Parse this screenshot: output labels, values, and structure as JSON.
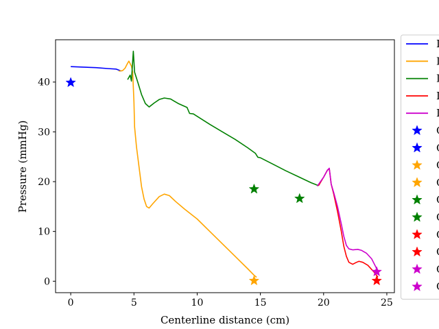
{
  "chart_data": {
    "type": "line",
    "xlabel": "Centerline distance (cm)",
    "ylabel": "Pressure (mmHg)",
    "xlim": [
      -1.2,
      25.6
    ],
    "ylim": [
      -2.3,
      48.5
    ],
    "xticks": [
      0,
      5,
      10,
      15,
      20,
      25
    ],
    "yticks": [
      0,
      10,
      20,
      30,
      40
    ],
    "grid": false,
    "legend_placement": "outside-right",
    "legend_labels": [
      "I",
      "I",
      "I",
      "I",
      "I",
      "C",
      "C",
      "C",
      "C",
      "C",
      "C",
      "C",
      "C",
      "C",
      "C"
    ],
    "series": [
      {
        "color": "#0000ff",
        "points": [
          [
            0,
            43.1
          ],
          [
            1,
            43.0
          ],
          [
            2,
            42.9
          ],
          [
            3,
            42.7
          ],
          [
            3.6,
            42.6
          ],
          [
            4.0,
            42.2
          ]
        ]
      },
      {
        "color": "#ffa500",
        "points": [
          [
            3.8,
            42.2
          ],
          [
            4.1,
            42.3
          ],
          [
            4.3,
            42.8
          ],
          [
            4.5,
            43.8
          ],
          [
            4.6,
            44.2
          ],
          [
            4.8,
            43.2
          ],
          [
            4.9,
            42.0
          ],
          [
            5.0,
            36.0
          ],
          [
            5.05,
            31.0
          ],
          [
            5.2,
            27.0
          ],
          [
            5.4,
            23.0
          ],
          [
            5.6,
            19.0
          ],
          [
            5.8,
            16.5
          ],
          [
            6.0,
            15.0
          ],
          [
            6.2,
            14.7
          ],
          [
            6.5,
            15.6
          ],
          [
            7.0,
            17.0
          ],
          [
            7.4,
            17.5
          ],
          [
            7.8,
            17.2
          ],
          [
            8.3,
            16.0
          ],
          [
            9.0,
            14.5
          ],
          [
            10.0,
            12.5
          ],
          [
            11.0,
            10.0
          ],
          [
            12.0,
            7.5
          ],
          [
            13.0,
            5.0
          ],
          [
            14.0,
            2.5
          ],
          [
            14.5,
            1.2
          ],
          [
            14.7,
            0.8
          ]
        ]
      },
      {
        "color": "#008000",
        "points": [
          [
            4.5,
            40.5
          ],
          [
            4.7,
            41.4
          ],
          [
            4.8,
            40.2
          ],
          [
            4.95,
            46.2
          ],
          [
            5.05,
            42.0
          ],
          [
            5.3,
            40.0
          ],
          [
            5.6,
            37.5
          ],
          [
            5.9,
            35.7
          ],
          [
            6.2,
            35.0
          ],
          [
            6.6,
            35.8
          ],
          [
            7.0,
            36.5
          ],
          [
            7.4,
            36.8
          ],
          [
            7.9,
            36.6
          ],
          [
            8.5,
            35.7
          ],
          [
            9.2,
            34.9
          ],
          [
            9.4,
            33.7
          ],
          [
            9.7,
            33.6
          ],
          [
            10.2,
            32.8
          ],
          [
            11,
            31.5
          ],
          [
            12,
            30.0
          ],
          [
            13,
            28.5
          ],
          [
            14,
            26.8
          ],
          [
            14.6,
            25.7
          ],
          [
            14.8,
            24.9
          ],
          [
            15,
            24.8
          ],
          [
            16,
            23.5
          ],
          [
            17,
            22.2
          ],
          [
            18,
            21.0
          ],
          [
            19,
            19.8
          ],
          [
            19.6,
            19.2
          ]
        ]
      },
      {
        "color": "#ff0000",
        "points": [
          [
            19.6,
            19.2
          ],
          [
            20.0,
            20.9
          ],
          [
            20.3,
            22.3
          ],
          [
            20.45,
            22.6
          ],
          [
            20.6,
            19.5
          ],
          [
            20.8,
            17.5
          ],
          [
            21.1,
            14.0
          ],
          [
            21.4,
            10.0
          ],
          [
            21.6,
            7.0
          ],
          [
            21.8,
            5.0
          ],
          [
            22.0,
            3.8
          ],
          [
            22.3,
            3.4
          ],
          [
            22.6,
            3.8
          ],
          [
            22.8,
            4.0
          ],
          [
            23.1,
            3.8
          ],
          [
            23.5,
            3.2
          ],
          [
            24.0,
            1.8
          ],
          [
            24.3,
            0.8
          ]
        ]
      },
      {
        "color": "#cc00cc",
        "points": [
          [
            19.5,
            19.1
          ],
          [
            20.0,
            20.9
          ],
          [
            20.3,
            22.3
          ],
          [
            20.45,
            22.7
          ],
          [
            20.6,
            19.5
          ],
          [
            20.8,
            17.8
          ],
          [
            21.1,
            15.0
          ],
          [
            21.4,
            11.5
          ],
          [
            21.6,
            9.0
          ],
          [
            21.8,
            7.2
          ],
          [
            22.0,
            6.5
          ],
          [
            22.3,
            6.3
          ],
          [
            22.7,
            6.4
          ],
          [
            23.0,
            6.2
          ],
          [
            23.4,
            5.6
          ],
          [
            23.8,
            4.5
          ],
          [
            24.1,
            3.0
          ],
          [
            24.3,
            2.0
          ]
        ]
      }
    ],
    "markers": [
      {
        "color": "#0000ff",
        "x": 0.0,
        "y": 39.9
      },
      {
        "color": "#ffa500",
        "x": 14.5,
        "y": 0.1
      },
      {
        "color": "#008000",
        "x": 14.5,
        "y": 18.5
      },
      {
        "color": "#008000",
        "x": 18.1,
        "y": 16.6
      },
      {
        "color": "#ff0000",
        "x": 24.2,
        "y": 0.1
      },
      {
        "color": "#cc00cc",
        "x": 24.2,
        "y": 1.9
      }
    ],
    "legend_items": [
      {
        "kind": "line",
        "color": "#0000ff"
      },
      {
        "kind": "line",
        "color": "#ffa500"
      },
      {
        "kind": "line",
        "color": "#008000"
      },
      {
        "kind": "line",
        "color": "#ff0000"
      },
      {
        "kind": "line",
        "color": "#cc00cc"
      },
      {
        "kind": "star",
        "color": "#0000ff"
      },
      {
        "kind": "star",
        "color": "#0000ff"
      },
      {
        "kind": "star",
        "color": "#ffa500"
      },
      {
        "kind": "star",
        "color": "#ffa500"
      },
      {
        "kind": "star",
        "color": "#008000"
      },
      {
        "kind": "star",
        "color": "#008000"
      },
      {
        "kind": "star",
        "color": "#ff0000"
      },
      {
        "kind": "star",
        "color": "#ff0000"
      },
      {
        "kind": "star",
        "color": "#cc00cc"
      },
      {
        "kind": "star",
        "color": "#cc00cc"
      }
    ]
  }
}
